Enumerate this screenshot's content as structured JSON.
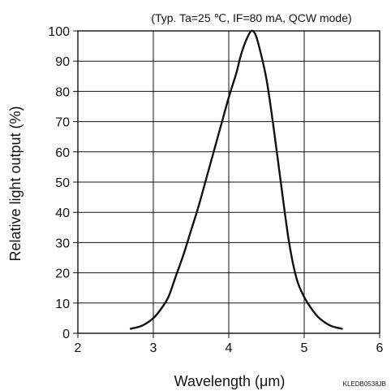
{
  "chart_data": {
    "type": "line",
    "title": "",
    "subtitle": "(Typ. Ta=25 ℃, IF=80 mA, QCW mode)",
    "xlabel": "Wavelength (μm)",
    "ylabel": "Relative light output (%)",
    "xlim": [
      2,
      6
    ],
    "ylim": [
      0,
      100
    ],
    "x_ticks": [
      2,
      3,
      4,
      5,
      6
    ],
    "y_ticks": [
      0,
      10,
      20,
      30,
      40,
      50,
      60,
      70,
      80,
      90,
      100
    ],
    "grid": true,
    "legend": "none",
    "line_color": "#111111",
    "series": [
      {
        "x": [
          2.7,
          2.85,
          3.0,
          3.1,
          3.2,
          3.3,
          3.4,
          3.5,
          3.6,
          3.7,
          3.8,
          3.9,
          4.0,
          4.1,
          4.15,
          4.2,
          4.25,
          4.3,
          4.35,
          4.4,
          4.5,
          4.6,
          4.7,
          4.8,
          4.9,
          5.0,
          5.1,
          5.2,
          5.35,
          5.5
        ],
        "y": [
          1.5,
          2.5,
          5,
          8,
          12,
          19,
          26,
          34,
          42,
          51,
          60,
          69,
          78,
          86,
          91,
          95,
          98,
          100,
          99,
          95,
          84,
          67,
          48,
          30,
          18,
          12,
          8,
          5,
          2.5,
          1.5
        ]
      }
    ]
  },
  "figure_code": "KLEDB0538JB"
}
